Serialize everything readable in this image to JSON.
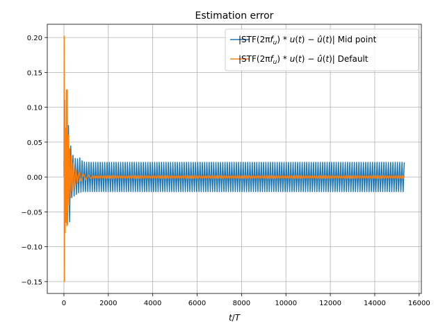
{
  "chart_data": {
    "type": "line",
    "title": "Estimation error",
    "xlabel_parts": [
      "t",
      "/",
      "T"
    ],
    "ylabel": "",
    "xlim": [
      -750,
      16100
    ],
    "ylim": [
      -0.167,
      0.219
    ],
    "grid": true,
    "legend_position": "top-right",
    "x_ticks": [
      0,
      2000,
      4000,
      6000,
      8000,
      10000,
      12000,
      14000,
      16000
    ],
    "x_tick_labels": [
      "0",
      "2000",
      "4000",
      "6000",
      "8000",
      "10000",
      "12000",
      "14000",
      "16000"
    ],
    "y_ticks": [
      -0.15,
      -0.1,
      -0.05,
      0.0,
      0.05,
      0.1,
      0.15,
      0.2
    ],
    "y_tick_labels": [
      "−0.15",
      "−0.10",
      "−0.05",
      "0.00",
      "0.05",
      "0.10",
      "0.15",
      "0.20"
    ],
    "series": [
      {
        "name": "|STF(2πf_u) * u(t) − û(t)| Mid point",
        "legend_prefix": "|STF(2π",
        "legend_math": "f",
        "legend_sub": "u",
        "legend_mid": ") * ",
        "legend_u": "u",
        "legend_t1": "(",
        "legend_t": "t",
        "legend_t2": ") − ",
        "legend_uhat": "û",
        "legend_t3": "(",
        "legend_t4": "t",
        "legend_t5": ")| Mid point",
        "color": "#1f77b4",
        "envelope": [
          [
            0,
            0.02
          ],
          [
            60,
            0.02
          ],
          [
            120,
            0.06
          ],
          [
            160,
            0.065
          ],
          [
            200,
            0.075
          ],
          [
            260,
            0.06
          ],
          [
            320,
            0.04
          ],
          [
            420,
            0.03
          ],
          [
            560,
            0.025
          ],
          [
            700,
            0.028
          ],
          [
            850,
            0.022
          ],
          [
            1000,
            0.021
          ],
          [
            15300,
            0.021
          ]
        ],
        "lower_envelope": [
          [
            0,
            -0.02
          ],
          [
            60,
            -0.02
          ],
          [
            120,
            -0.06
          ],
          [
            160,
            -0.07
          ],
          [
            210,
            -0.078
          ],
          [
            270,
            -0.06
          ],
          [
            330,
            -0.03
          ],
          [
            430,
            -0.028
          ],
          [
            560,
            -0.025
          ],
          [
            700,
            -0.022
          ],
          [
            850,
            -0.021
          ],
          [
            1000,
            -0.021
          ],
          [
            15300,
            -0.021
          ]
        ],
        "cycles": 150,
        "x_end": 15330
      },
      {
        "name": "|STF(2πf_u) * u(t) − û(t)| Default",
        "legend_t5": ")| Default",
        "color": "#ff7f0e",
        "spikes": [
          [
            0,
            0.0
          ],
          [
            12,
            0.202
          ],
          [
            24,
            -0.15
          ],
          [
            40,
            0.11
          ],
          [
            55,
            -0.08
          ],
          [
            70,
            0.07
          ],
          [
            90,
            -0.065
          ],
          [
            110,
            0.125
          ],
          [
            130,
            -0.07
          ],
          [
            150,
            0.125
          ],
          [
            175,
            -0.05
          ],
          [
            200,
            0.06
          ],
          [
            230,
            -0.04
          ],
          [
            260,
            0.04
          ],
          [
            300,
            -0.03
          ],
          [
            340,
            0.03
          ],
          [
            380,
            -0.02
          ],
          [
            420,
            0.02
          ],
          [
            480,
            -0.015
          ],
          [
            540,
            0.012
          ],
          [
            600,
            -0.01
          ],
          [
            680,
            0.008
          ],
          [
            760,
            -0.006
          ],
          [
            860,
            0.005
          ],
          [
            980,
            -0.004
          ],
          [
            1100,
            0.003
          ],
          [
            1200,
            -0.002
          ]
        ],
        "tail_amp": 0.002,
        "cycles": 150,
        "x_end": 15330
      }
    ]
  }
}
